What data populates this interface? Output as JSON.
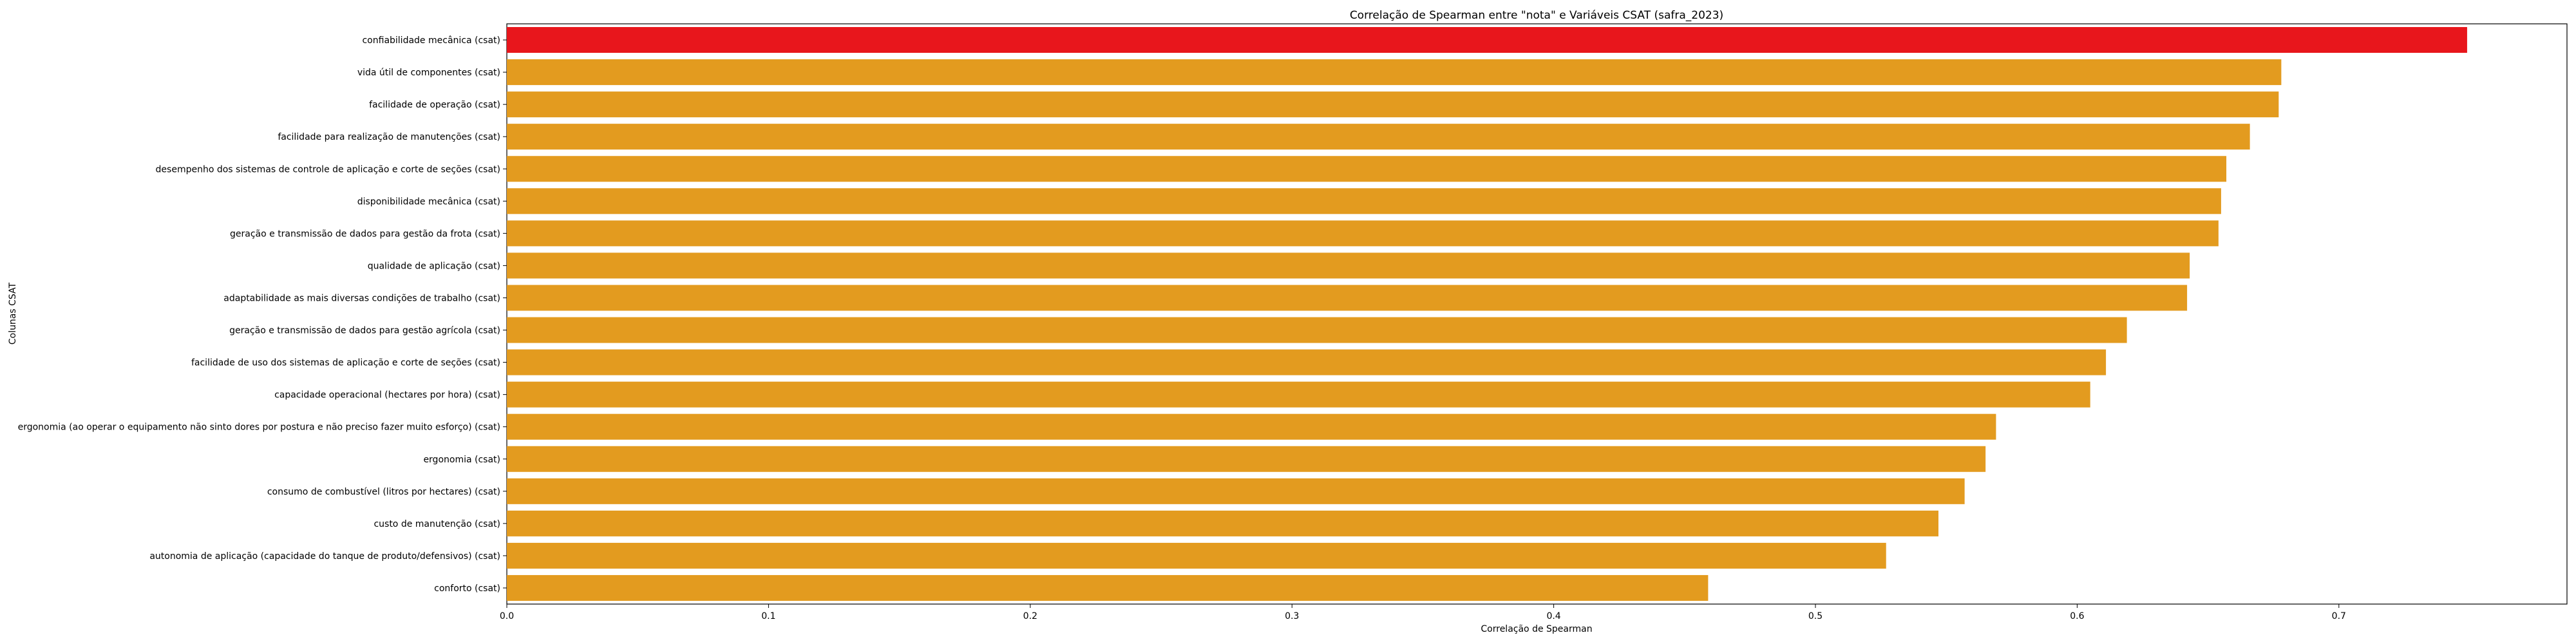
{
  "chart_data": {
    "type": "bar",
    "orientation": "horizontal",
    "title": "Correlação de Spearman entre \"nota\" e Variáveis CSAT (safra_2023)",
    "xlabel": "Correlação de Spearman",
    "ylabel": "Colunas CSAT",
    "xlim": [
      0,
      0.78
    ],
    "xticks": [
      "0.0",
      "0.1",
      "0.2",
      "0.3",
      "0.4",
      "0.5",
      "0.6",
      "0.7"
    ],
    "grid": false,
    "colors": {
      "highlight": "#e8161c",
      "default": "#e39b1f"
    },
    "categories": [
      "confiabilidade mecânica (csat)",
      "vida útil de componentes (csat)",
      "facilidade de operação (csat)",
      "facilidade para realização de manutenções (csat)",
      "desempenho dos sistemas de controle de aplicação e corte de seções (csat)",
      "disponibilidade mecânica (csat)",
      "geração e transmissão de dados para gestão da frota (csat)",
      "qualidade de aplicação (csat)",
      "adaptabilidade as mais diversas condições de trabalho (csat)",
      "geração e transmissão de dados para gestão agrícola (csat)",
      "facilidade de uso dos sistemas de aplicação e corte de seções (csat)",
      "capacidade operacional (hectares por hora) (csat)",
      "ergonomia (ao operar o equipamento não sinto dores por postura e não preciso fazer muito esforço) (csat)",
      "ergonomia (csat)",
      "consumo de combustível (litros por hectares) (csat)",
      "custo de manutenção (csat)",
      "autonomia de aplicação (capacidade do tanque de produto/defensivos) (csat)",
      "conforto (csat)"
    ],
    "values": [
      0.749,
      0.678,
      0.677,
      0.666,
      0.657,
      0.655,
      0.654,
      0.643,
      0.642,
      0.619,
      0.611,
      0.605,
      0.569,
      0.565,
      0.557,
      0.547,
      0.527,
      0.459
    ],
    "highlight_index": 0
  }
}
